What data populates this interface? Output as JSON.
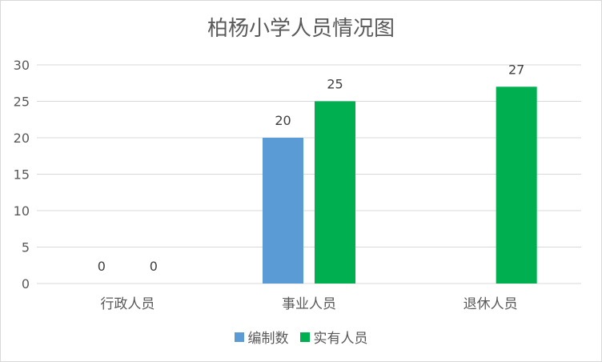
{
  "chart_data": {
    "type": "bar",
    "title": "柏杨小学人员情况图",
    "xlabel": "",
    "ylabel": "",
    "categories": [
      "行政人员",
      "事业人员",
      "退休人员"
    ],
    "series": [
      {
        "name": "编制数",
        "color": "#5b9bd5",
        "values": [
          0,
          20,
          null
        ]
      },
      {
        "name": "实有人员",
        "color": "#00b050",
        "values": [
          0,
          25,
          27
        ]
      }
    ],
    "yticks": [
      0,
      5,
      10,
      15,
      20,
      25,
      30
    ],
    "ylim": [
      0,
      30
    ],
    "grid": true,
    "legend_position": "bottom",
    "data_labels": true
  }
}
